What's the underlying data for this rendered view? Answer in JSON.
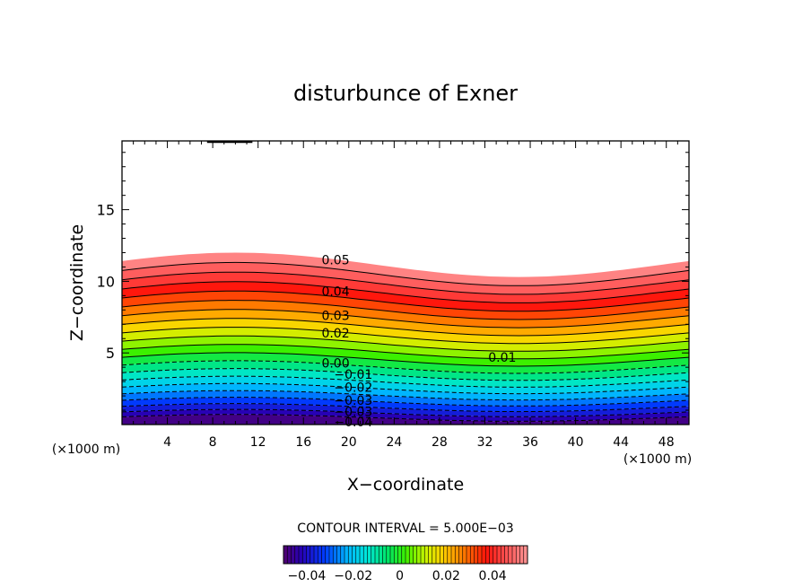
{
  "chart_data": {
    "type": "contour",
    "title": "disturbunce of Exner",
    "xlabel": "X−coordinate",
    "ylabel": "Z−coordinate",
    "x_unit": "(×1000 m)",
    "xlim": [
      0,
      50
    ],
    "ylim": [
      0,
      19.8
    ],
    "x_ticks": [
      4,
      8,
      12,
      16,
      20,
      24,
      28,
      32,
      36,
      40,
      44,
      48
    ],
    "y_ticks": [
      5,
      10,
      15
    ],
    "x_tick_labels": [
      "4",
      "8",
      "12",
      "16",
      "20",
      "24",
      "28",
      "32",
      "36",
      "40",
      "44",
      "48"
    ],
    "y_tick_labels": [
      "5",
      "10",
      "15"
    ],
    "contour_interval_text": "CONTOUR INTERVAL = 5.000E−03",
    "contour_interval": 0.005,
    "contour_labels": [
      {
        "text": "0.05",
        "x": 17.6,
        "y": 11.5
      },
      {
        "text": "0.04",
        "x": 17.6,
        "y": 9.3
      },
      {
        "text": "0.03",
        "x": 17.6,
        "y": 7.6
      },
      {
        "text": "0.02",
        "x": 17.6,
        "y": 6.4
      },
      {
        "text": "0.01",
        "x": 32.3,
        "y": 4.7
      },
      {
        "text": "0.00",
        "x": 17.6,
        "y": 4.3
      },
      {
        "text": "−0.01",
        "x": 18.7,
        "y": 3.5
      },
      {
        "text": "−0.02",
        "x": 18.7,
        "y": 2.6
      },
      {
        "text": "−0.03",
        "x": 18.7,
        "y": 1.7
      },
      {
        "text": "−0.03",
        "x": 18.7,
        "y": 0.9
      },
      {
        "text": "−0.04",
        "x": 18.7,
        "y": 0.2
      }
    ],
    "field_description": {
      "value_top_of_colored_region": 0.055,
      "value_at_ground": -0.05,
      "top_boundary_height_at_x0": 11.2,
      "top_boundary_max": {
        "x": 10,
        "z": 12.0
      },
      "top_boundary_min": {
        "x": 35,
        "z": 10.3
      },
      "top_boundary_height_at_x50": 11.2
    },
    "colorbar": {
      "min": -0.05,
      "max": 0.055,
      "tick_values": [
        -0.04,
        -0.02,
        0,
        0.02,
        0.04
      ],
      "tick_labels": [
        "−0.04",
        "−0.02",
        "0",
        "0.02",
        "0.04"
      ]
    }
  }
}
